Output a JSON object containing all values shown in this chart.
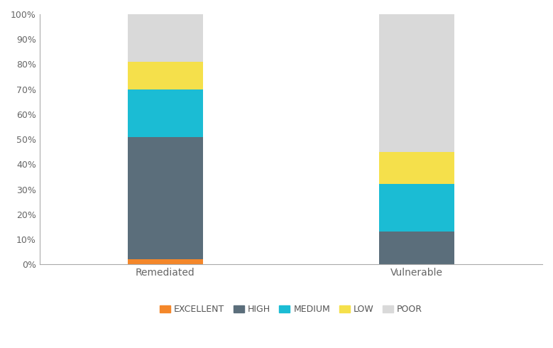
{
  "categories": [
    "Remediated",
    "Vulnerable"
  ],
  "segments": [
    "EXCELLENT",
    "HIGH",
    "MEDIUM",
    "LOW",
    "POOR"
  ],
  "values": {
    "EXCELLENT": [
      2,
      0
    ],
    "HIGH": [
      49,
      13
    ],
    "MEDIUM": [
      19,
      19
    ],
    "LOW": [
      11,
      13
    ],
    "POOR": [
      19,
      55
    ]
  },
  "colors": {
    "EXCELLENT": "#F4872A",
    "HIGH": "#5B6E7B",
    "MEDIUM": "#1BBCD4",
    "LOW": "#F5E04B",
    "POOR": "#D9D9D9"
  },
  "ylim": [
    0,
    100
  ],
  "yticks": [
    0,
    10,
    20,
    30,
    40,
    50,
    60,
    70,
    80,
    90,
    100
  ],
  "ytick_labels": [
    "0%",
    "10%",
    "20%",
    "30%",
    "40%",
    "50%",
    "60%",
    "70%",
    "80%",
    "90%",
    "100%"
  ],
  "bar_width": 0.15,
  "x_positions": [
    0.25,
    0.75
  ],
  "xlim": [
    0.0,
    1.0
  ],
  "background_color": "#ffffff",
  "legend_fontsize": 9,
  "tick_fontsize": 9,
  "xlabel_fontsize": 10,
  "spine_color": "#aaaaaa"
}
